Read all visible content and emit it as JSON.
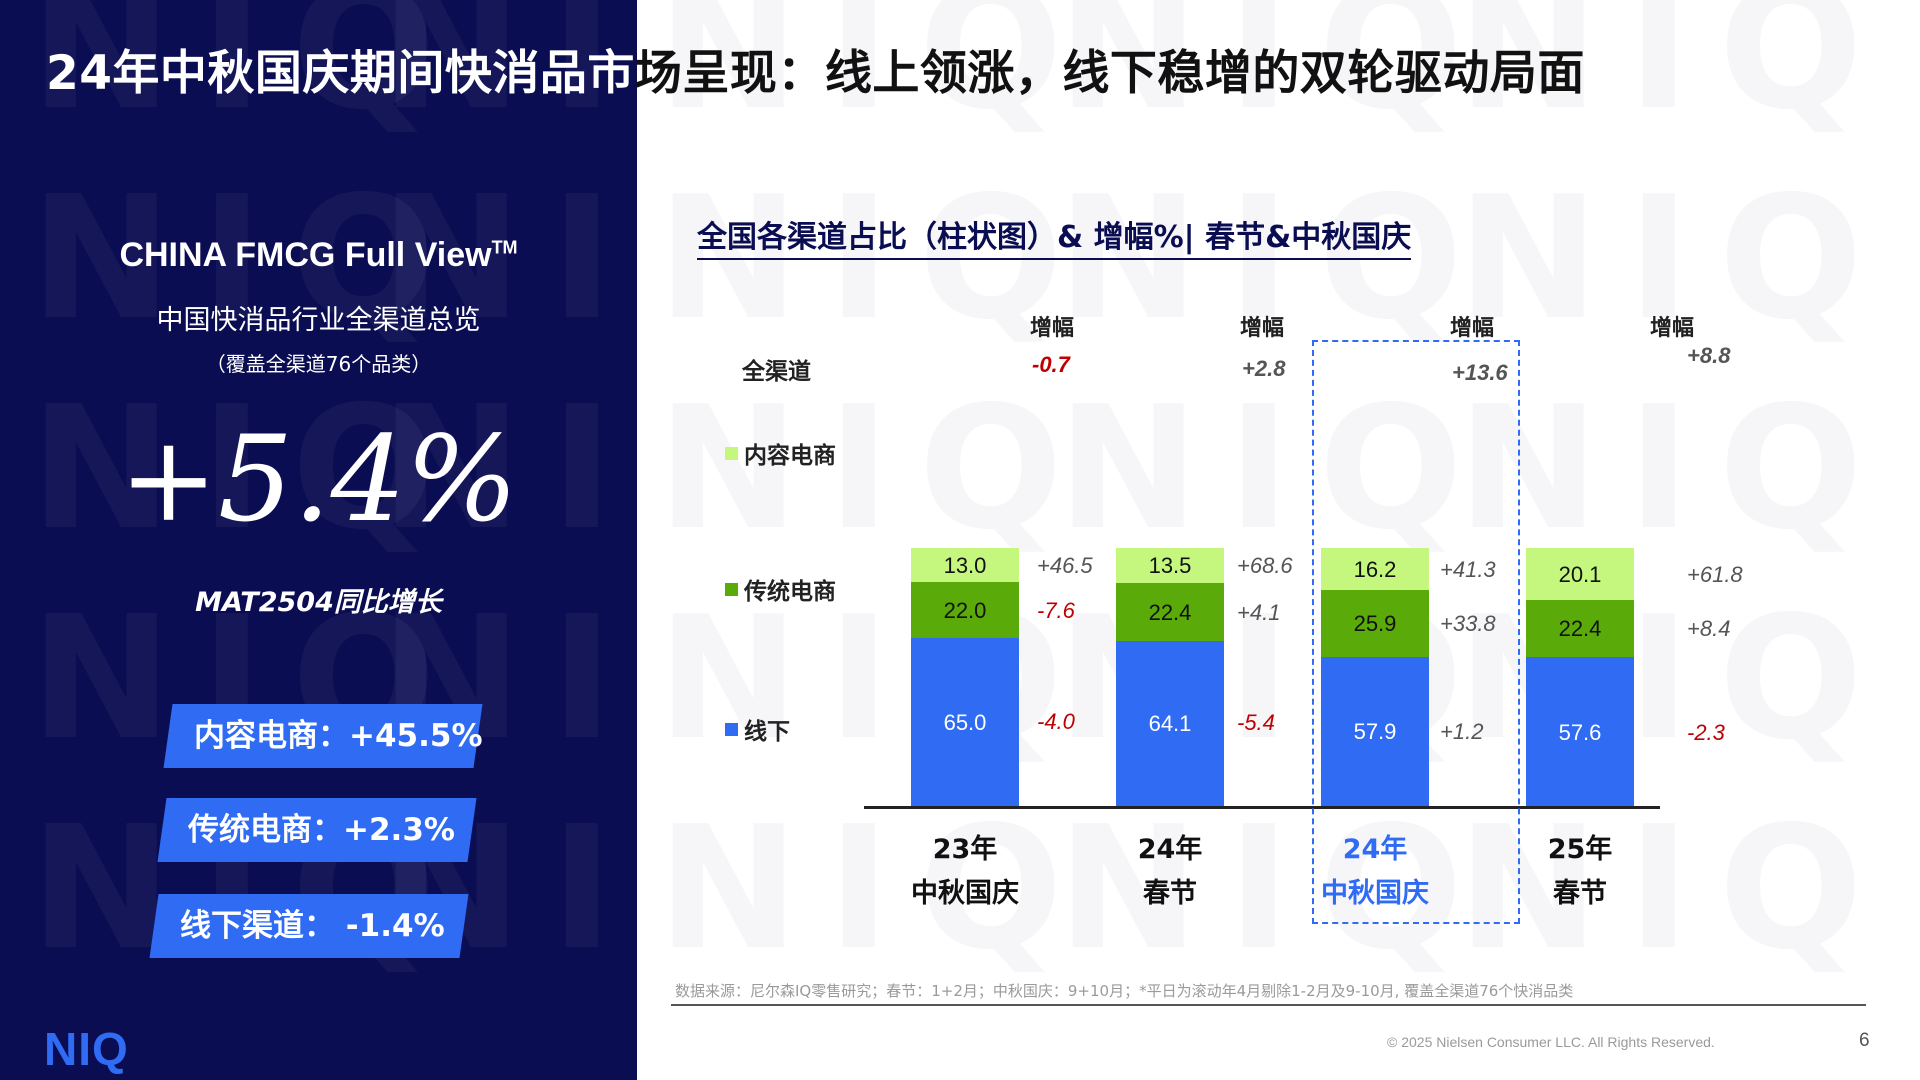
{
  "slide": {
    "title_part1": "24年中秋国庆期间快消品市",
    "title_part2": "场呈现：线上领涨，线下稳增的双轮驱动局面",
    "page_number": "6"
  },
  "left_panel": {
    "full_view_title": "CHINA FMCG Full View",
    "full_view_tm": "TM",
    "subtitle": "中国快消品行业全渠道总览",
    "note": "（覆盖全渠道76个品类）",
    "headline_value": "+5.4%",
    "headline_label": "MAT2504同比增长",
    "channel_tags": [
      {
        "label": "内容电商：+45.5%"
      },
      {
        "label": "传统电商：+2.3%"
      },
      {
        "label": "线下渠道：  -1.4%"
      }
    ],
    "logo": "NIQ",
    "watermark": "NIQ"
  },
  "chart_data": {
    "type": "bar",
    "stacked": true,
    "title": "全国各渠道占比（柱状图）& 增幅%| 春节&中秋国庆",
    "categories": [
      "23年\n中秋国庆",
      "24年\n春节",
      "24年\n中秋国庆",
      "25年\n春节"
    ],
    "category_lines": [
      [
        "23年",
        "中秋国庆"
      ],
      [
        "24年",
        "春节"
      ],
      [
        "24年",
        "中秋国庆"
      ],
      [
        "25年",
        "春节"
      ]
    ],
    "series": [
      {
        "name": "线下",
        "values": [
          65.0,
          64.1,
          57.9,
          57.6
        ],
        "labels": [
          "65.0",
          "64.1",
          "57.9",
          "57.6"
        ],
        "color": "#2f6bf3",
        "growth": [
          "-4.0",
          "-5.4",
          "+1.2",
          "-2.3"
        ]
      },
      {
        "name": "传统电商",
        "values": [
          22.0,
          22.4,
          25.9,
          22.4
        ],
        "labels": [
          "22.0",
          "22.4",
          "25.9",
          "22.4"
        ],
        "color": "#5aaa0a",
        "growth": [
          "-7.6",
          "+4.1",
          "+33.8",
          "+8.4"
        ]
      },
      {
        "name": "内容电商",
        "values": [
          13.0,
          13.5,
          16.2,
          20.1
        ],
        "labels": [
          "13.0",
          "13.5",
          "16.2",
          "20.1"
        ],
        "color": "#c5f77e",
        "growth": [
          "+46.5",
          "+68.6",
          "+41.3",
          "+61.8"
        ]
      }
    ],
    "total": {
      "name": "全渠道",
      "growth": [
        "-0.7",
        "+2.8",
        "+13.6",
        "+8.8"
      ]
    },
    "growth_header": "增幅",
    "highlighted_category": "24年中秋国庆",
    "ylim": [
      0,
      100
    ]
  },
  "footer": {
    "source": "数据来源：尼尔森IQ零售研究；春节：1+2月；中秋国庆：9+10月；*平日为滚动年4月剔除1-2月及9-10月, 覆盖全渠道76个快消品类",
    "copyright": "© 2025 Nielsen Consumer LLC. All Rights Reserved."
  }
}
